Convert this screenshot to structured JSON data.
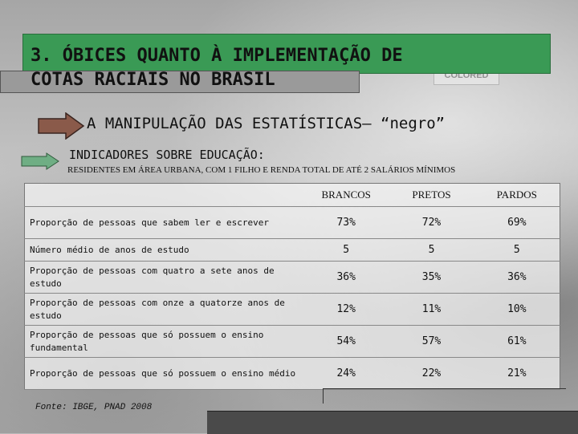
{
  "slide": {
    "title_line1": "3. ÓBICES QUANTO À IMPLEMENTAÇÃO DE",
    "title_line2": "COTAS RACIAIS NO BRASIL",
    "subtitle": "A MANIPULAÇÃO DAS ESTATÍSTICAS– “negro”",
    "indicators": "INDICADORES SOBRE EDUCAÇÃO:",
    "residents": "RESIDENTES EM ÁREA URBANA, COM 1 FILHO E RENDA TOTAL DE ATÉ 2 SALÁRIOS MÍNIMOS",
    "source": "Fonte: IBGE, PNAD 2008"
  },
  "table": {
    "headers": [
      "",
      "BRANCOS",
      "PRETOS",
      "PARDOS"
    ],
    "rows": [
      {
        "label": "Proporção de pessoas que sabem ler e escrever",
        "values": [
          "73%",
          "72%",
          "69%"
        ]
      },
      {
        "label": "Número médio de anos de estudo",
        "values": [
          "5",
          "5",
          "5"
        ]
      },
      {
        "label": "Proporção de pessoas com quatro a sete anos de estudo",
        "values": [
          "36%",
          "35%",
          "36%"
        ]
      },
      {
        "label": "Proporção de pessoas com onze a quatorze anos de estudo",
        "values": [
          "12%",
          "11%",
          "10%"
        ]
      },
      {
        "label": "Proporção de pessoas que só possuem o ensino fundamental",
        "values": [
          "54%",
          "57%",
          "61%"
        ]
      },
      {
        "label": "Proporção de pessoas que só possuem o ensino médio",
        "values": [
          "24%",
          "22%",
          "21%"
        ]
      }
    ]
  },
  "colors": {
    "title_bar": "#3a9a55",
    "arrow_brown": "#8a5a4a",
    "arrow_green": "#6fae84"
  },
  "icons": {
    "big_arrow": "arrow-right-icon",
    "small_arrow": "arrow-right-icon"
  }
}
